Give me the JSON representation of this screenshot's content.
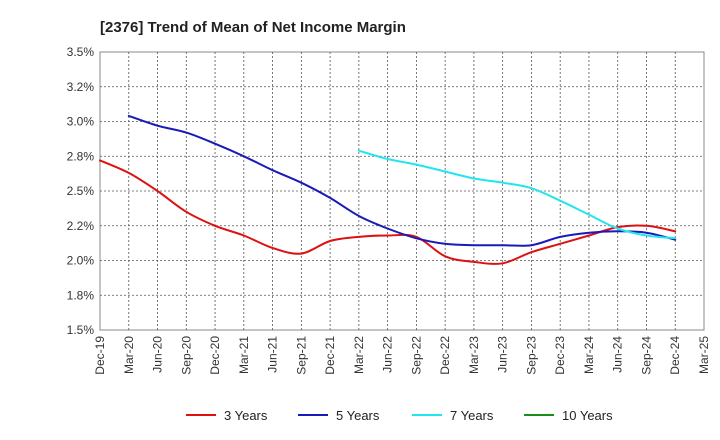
{
  "chart_data": {
    "type": "line",
    "title": "[2376]  Trend of Mean of Net Income Margin",
    "xlabel": "",
    "ylabel": "",
    "ylim": [
      1.5,
      3.5
    ],
    "ytick_labels": [
      "1.5%",
      "1.8%",
      "2.0%",
      "2.2%",
      "2.5%",
      "2.8%",
      "3.0%",
      "3.2%",
      "3.5%"
    ],
    "xtick_labels": [
      "Dec-19",
      "Mar-20",
      "Jun-20",
      "Sep-20",
      "Dec-20",
      "Mar-21",
      "Jun-21",
      "Sep-21",
      "Dec-21",
      "Mar-22",
      "Jun-22",
      "Sep-22",
      "Dec-22",
      "Mar-23",
      "Jun-23",
      "Sep-23",
      "Dec-23",
      "Mar-24",
      "Jun-24",
      "Sep-24",
      "Dec-24",
      "Mar-25"
    ],
    "grid": true,
    "legend_position": "bottom",
    "series": [
      {
        "name": "3 Years",
        "color": "#dd1111",
        "points": [
          [
            "Dec-19",
            2.72
          ],
          [
            "Mar-20",
            2.63
          ],
          [
            "Jun-20",
            2.5
          ],
          [
            "Sep-20",
            2.35
          ],
          [
            "Dec-20",
            2.25
          ],
          [
            "Mar-21",
            2.18
          ],
          [
            "Jun-21",
            2.09
          ],
          [
            "Sep-21",
            2.05
          ],
          [
            "Dec-21",
            2.14
          ],
          [
            "Mar-22",
            2.17
          ],
          [
            "Jun-22",
            2.18
          ],
          [
            "Sep-22",
            2.17
          ],
          [
            "Dec-22",
            2.03
          ],
          [
            "Mar-23",
            1.99
          ],
          [
            "Jun-23",
            1.98
          ],
          [
            "Sep-23",
            2.06
          ],
          [
            "Dec-23",
            2.12
          ],
          [
            "Mar-24",
            2.18
          ],
          [
            "Jun-24",
            2.24
          ],
          [
            "Sep-24",
            2.25
          ],
          [
            "Dec-24",
            2.21
          ]
        ]
      },
      {
        "name": "5 Years",
        "color": "#1a1ab8",
        "points": [
          [
            "Mar-20",
            3.04
          ],
          [
            "Jun-20",
            2.97
          ],
          [
            "Sep-20",
            2.92
          ],
          [
            "Dec-20",
            2.84
          ],
          [
            "Mar-21",
            2.75
          ],
          [
            "Jun-21",
            2.65
          ],
          [
            "Sep-21",
            2.56
          ],
          [
            "Dec-21",
            2.45
          ],
          [
            "Mar-22",
            2.32
          ],
          [
            "Jun-22",
            2.23
          ],
          [
            "Sep-22",
            2.16
          ],
          [
            "Dec-22",
            2.12
          ],
          [
            "Mar-23",
            2.11
          ],
          [
            "Jun-23",
            2.11
          ],
          [
            "Sep-23",
            2.11
          ],
          [
            "Dec-23",
            2.17
          ],
          [
            "Mar-24",
            2.2
          ],
          [
            "Jun-24",
            2.21
          ],
          [
            "Sep-24",
            2.2
          ],
          [
            "Dec-24",
            2.15
          ]
        ]
      },
      {
        "name": "7 Years",
        "color": "#22e5ee",
        "points": [
          [
            "Mar-22",
            2.79
          ],
          [
            "Jun-22",
            2.73
          ],
          [
            "Sep-22",
            2.69
          ],
          [
            "Dec-22",
            2.64
          ],
          [
            "Mar-23",
            2.59
          ],
          [
            "Jun-23",
            2.56
          ],
          [
            "Sep-23",
            2.52
          ],
          [
            "Dec-23",
            2.43
          ],
          [
            "Mar-24",
            2.33
          ],
          [
            "Jun-24",
            2.23
          ],
          [
            "Sep-24",
            2.18
          ],
          [
            "Dec-24",
            2.16
          ]
        ]
      },
      {
        "name": "10 Years",
        "color": "#1c8c1c",
        "points": []
      }
    ]
  }
}
